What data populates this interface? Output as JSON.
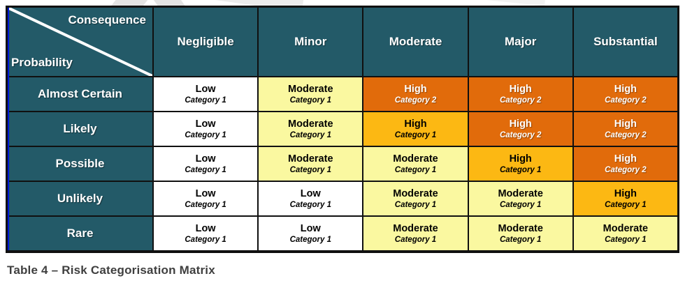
{
  "caption": "Table 4 – Risk Categorisation Matrix",
  "table": {
    "corner": {
      "top_label": "Consequence",
      "bottom_label": "Probability"
    },
    "columns": [
      "Negligible",
      "Minor",
      "Moderate",
      "Major",
      "Substantial"
    ],
    "rows": [
      {
        "label": "Almost Certain",
        "cells": [
          {
            "level": "Low",
            "category": "Category 1",
            "style": "low"
          },
          {
            "level": "Moderate",
            "category": "Category 1",
            "style": "moderate"
          },
          {
            "level": "High",
            "category": "Category 2",
            "style": "high2"
          },
          {
            "level": "High",
            "category": "Category 2",
            "style": "high2"
          },
          {
            "level": "High",
            "category": "Category 2",
            "style": "high2"
          }
        ]
      },
      {
        "label": "Likely",
        "cells": [
          {
            "level": "Low",
            "category": "Category 1",
            "style": "low"
          },
          {
            "level": "Moderate",
            "category": "Category 1",
            "style": "moderate"
          },
          {
            "level": "High",
            "category": "Category 1",
            "style": "high1"
          },
          {
            "level": "High",
            "category": "Category 2",
            "style": "high2"
          },
          {
            "level": "High",
            "category": "Category 2",
            "style": "high2"
          }
        ]
      },
      {
        "label": "Possible",
        "cells": [
          {
            "level": "Low",
            "category": "Category 1",
            "style": "low"
          },
          {
            "level": "Moderate",
            "category": "Category 1",
            "style": "moderate"
          },
          {
            "level": "Moderate",
            "category": "Category 1",
            "style": "moderate"
          },
          {
            "level": "High",
            "category": "Category 1",
            "style": "high1"
          },
          {
            "level": "High",
            "category": "Category 2",
            "style": "high2"
          }
        ]
      },
      {
        "label": "Unlikely",
        "cells": [
          {
            "level": "Low",
            "category": "Category 1",
            "style": "low"
          },
          {
            "level": "Low",
            "category": "Category 1",
            "style": "low"
          },
          {
            "level": "Moderate",
            "category": "Category 1",
            "style": "moderate"
          },
          {
            "level": "Moderate",
            "category": "Category 1",
            "style": "moderate"
          },
          {
            "level": "High",
            "category": "Category 1",
            "style": "high1"
          }
        ]
      },
      {
        "label": "Rare",
        "cells": [
          {
            "level": "Low",
            "category": "Category 1",
            "style": "low"
          },
          {
            "level": "Low",
            "category": "Category 1",
            "style": "low"
          },
          {
            "level": "Moderate",
            "category": "Category 1",
            "style": "moderate"
          },
          {
            "level": "Moderate",
            "category": "Category 1",
            "style": "moderate"
          },
          {
            "level": "Moderate",
            "category": "Category 1",
            "style": "moderate"
          }
        ]
      }
    ]
  },
  "colors": {
    "header_teal": "#235A68",
    "low_bg": "#FFFFFF",
    "moderate_bg": "#FAF8A0",
    "high_cat1_bg": "#FCB813",
    "high_cat2_bg": "#E16B0B",
    "border": "#101010",
    "left_edge_blue": "#0018D8",
    "caption_text": "#3F3F3F"
  }
}
